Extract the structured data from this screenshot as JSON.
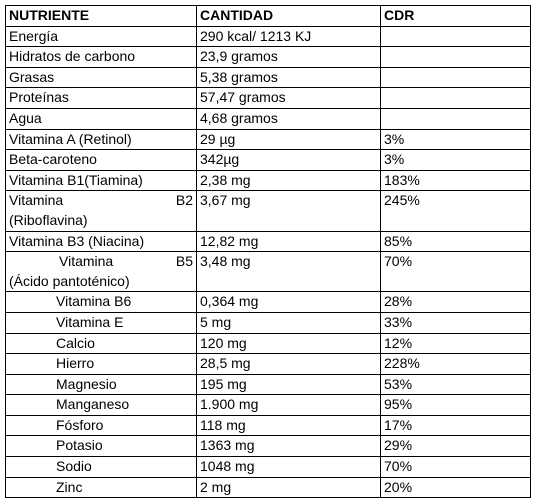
{
  "table": {
    "header": [
      "NUTRIENTE",
      "CANTIDAD",
      "CDR"
    ],
    "rows": [
      [
        "Energía",
        "290 kcal/ 1213 KJ"
      ],
      [
        "Hidratos de carbono",
        "23,9 gramos"
      ],
      [
        "Grasas",
        "5,38 gramos"
      ],
      [
        "Proteínas",
        "57,47 gramos"
      ],
      [
        "Agua",
        "4,68 gramos"
      ],
      [
        "Vitamina A (Retinol)",
        "29 µg",
        "3%"
      ],
      [
        "Beta-caroteno",
        "342µg",
        "3%"
      ],
      [
        "Vitamina B1(Tiamina)",
        "2,38 mg",
        "183%"
      ],
      [
        [
          "Vitamina B2",
          "(Riboflavina)"
        ],
        "3,67 mg",
        "245%"
      ],
      [
        "Vitamina B3 (Niacina)",
        "12,82 mg",
        "85%"
      ],
      [
        [
          "Vitamina B5",
          "(Ácido pantoténico)"
        ],
        "3,48 mg",
        "70%"
      ],
      [
        "Vitamina B6",
        "0,364 mg",
        "28%"
      ],
      [
        "Vitamina E",
        "5 mg",
        "33%"
      ],
      [
        "Calcio",
        "120 mg",
        "12%"
      ],
      [
        "Hierro",
        "28,5 mg",
        "228%"
      ],
      [
        "Magnesio",
        "195 mg",
        "53%"
      ],
      [
        "Manganeso",
        "1.900 mg",
        "95%"
      ],
      [
        "Fósforo",
        "118 mg",
        "17%"
      ],
      [
        "Potasio",
        "1363 mg",
        "29%"
      ],
      [
        "Sodio",
        "1048 mg",
        "70%"
      ],
      [
        "Zinc",
        "2 mg",
        "20%"
      ]
    ]
  }
}
